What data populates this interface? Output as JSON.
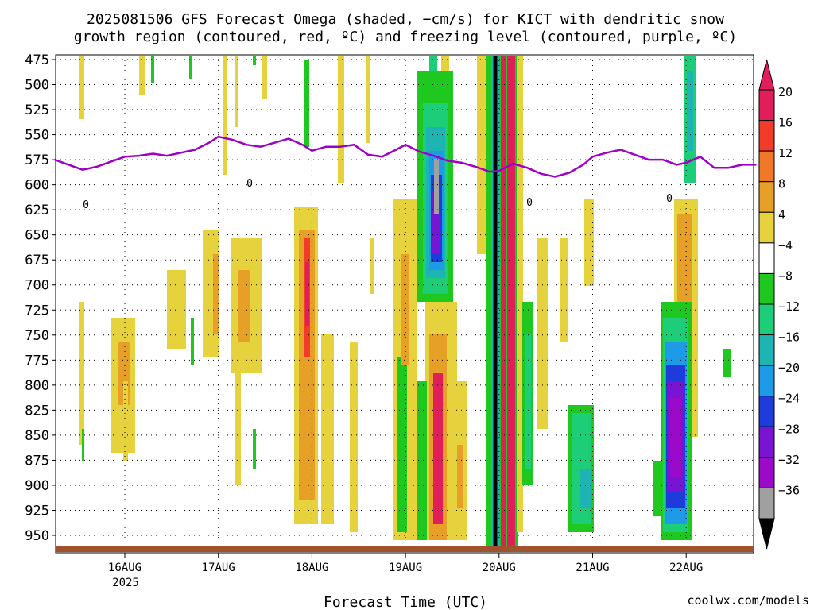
{
  "title_line1": "2025081506 GFS Forecast Omega (shaded, −cm/s) for KICT with dendritic snow",
  "title_line2": "growth region (contoured, red, ºC) and freezing level (contoured, purple, ºC)",
  "xlabel": "Forecast Time (UTC)",
  "credit": "coolwx.com/models",
  "colors": {
    "freezing_line": "#a000c8",
    "ground": "#a0522d",
    "credit_text": "#cc0000"
  },
  "chart_data": {
    "type": "heatmap",
    "y_ticks": [
      "475",
      "500",
      "525",
      "550",
      "575",
      "600",
      "625",
      "650",
      "675",
      "700",
      "725",
      "750",
      "775",
      "800",
      "825",
      "850",
      "875",
      "900",
      "925",
      "950"
    ],
    "x_ticks": [
      "16AUG",
      "17AUG",
      "18AUG",
      "19AUG",
      "20AUG",
      "21AUG",
      "22AUG"
    ],
    "x_year": "2025",
    "colorbar": {
      "labels": [
        "20",
        "16",
        "12",
        "8",
        "4",
        "−4",
        "−8",
        "−12",
        "−16",
        "−20",
        "−24",
        "−28",
        "−32",
        "−36"
      ],
      "colors": [
        "#e01e5a",
        "#f03c28",
        "#f07828",
        "#e6a028",
        "#e6d23c",
        "#ffffff",
        "#1ec81e",
        "#1ecd78",
        "#1eb4b4",
        "#1e9be6",
        "#1e3cdc",
        "#7814d2",
        "#9b0ac8",
        "#a0a0a0"
      ]
    },
    "freezing_level": {
      "label": "0",
      "x_day": [
        15.25,
        15.4,
        15.55,
        15.7,
        15.85,
        16.0,
        16.15,
        16.3,
        16.45,
        16.6,
        16.75,
        16.9,
        17.0,
        17.15,
        17.3,
        17.45,
        17.6,
        17.75,
        17.9,
        18.0,
        18.15,
        18.3,
        18.45,
        18.6,
        18.75,
        18.9,
        19.0,
        19.15,
        19.3,
        19.45,
        19.6,
        19.75,
        19.9,
        20.0,
        20.15,
        20.3,
        20.45,
        20.6,
        20.75,
        20.9,
        21.0,
        21.15,
        21.3,
        21.45,
        21.6,
        21.75,
        21.9,
        22.0,
        22.15,
        22.3,
        22.45,
        22.6,
        22.75
      ],
      "pressure_hpa": [
        575,
        580,
        585,
        582,
        577,
        572,
        571,
        569,
        571,
        568,
        565,
        558,
        552,
        555,
        560,
        562,
        558,
        554,
        560,
        566,
        562,
        562,
        560,
        570,
        572,
        565,
        560,
        567,
        571,
        576,
        578,
        582,
        587,
        586,
        579,
        583,
        589,
        592,
        588,
        580,
        572,
        568,
        565,
        570,
        575,
        575,
        580,
        578,
        572,
        583,
        583,
        580,
        580
      ]
    }
  }
}
